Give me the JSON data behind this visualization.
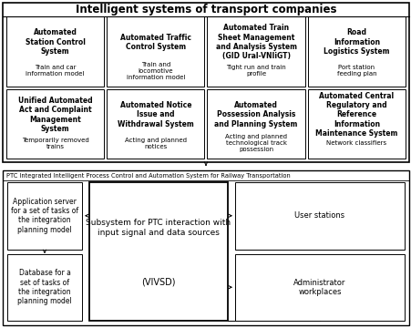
{
  "title": "Intelligent systems of transport companies",
  "bottom_label": "PTC Integrated Intelligent Process Control and Automation System for Railway Transportation",
  "top_boxes_row1": [
    {
      "bold": "Automated\nStation Control\nSystem",
      "normal": "Train and car\ninformation model"
    },
    {
      "bold": "Automated Traffic\nControl System",
      "normal": "Train and\nlocomotive\ninformation model"
    },
    {
      "bold": "Automated Train\nSheet Management\nand Analysis System\n(GID Ural-VNIiGT)",
      "normal": "Tight run and train\nprofile"
    },
    {
      "bold": "Road\nInformation\nLogistics System",
      "normal": "Port station\nfeeding plan"
    }
  ],
  "top_boxes_row2": [
    {
      "bold": "Unified Automated\nAct and Complaint\nManagement\nSystem",
      "normal": "Temporarily removed\ntrains"
    },
    {
      "bold": "Automated Notice\nIssue and\nWithdrawal System",
      "normal": "Acting and planned\nnotices"
    },
    {
      "bold": "Automated\nPossession Analysis\nand Planning System",
      "normal": "Acting and planned\ntechnological track\npossession"
    },
    {
      "bold": "Automated Central\nRegulatory and\nReference\nInformation\nMaintenance System",
      "normal": "Network classifiers"
    }
  ],
  "app_server_text": "Application server\nfor a set of tasks of\nthe integration\nplanning model",
  "database_text": "Database for a\nset of tasks of\nthe integration\nplanning model",
  "subsystem_text_top": "Subsystem for PTC interaction with\ninput signal and data sources",
  "subsystem_text_bot": "(VIVSD)",
  "user_stations_text": "User stations",
  "admin_text": "Administrator\nworkplaces"
}
